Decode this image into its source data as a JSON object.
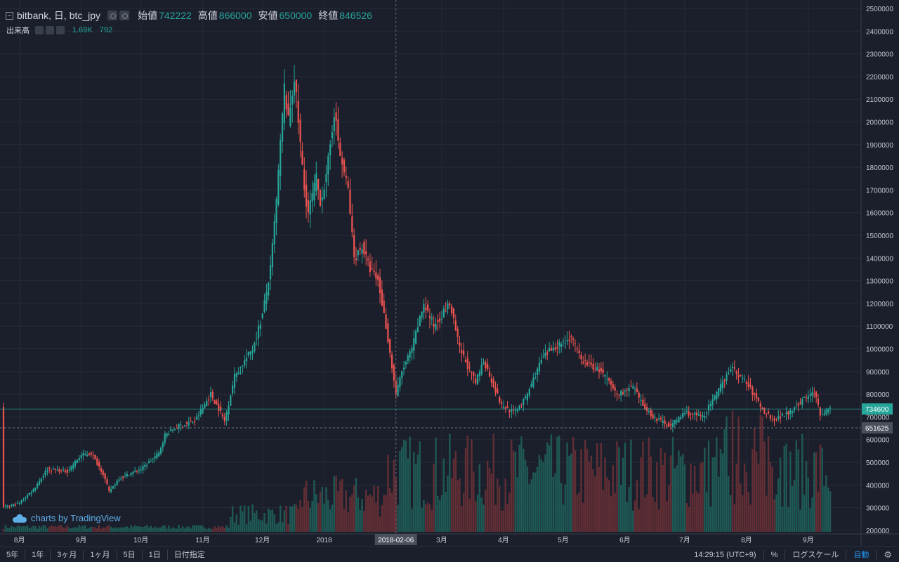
{
  "legend": {
    "symbol": "bitbank, 日, btc_jpy",
    "open_label": "始値",
    "open": "742222",
    "high_label": "高値",
    "high": "866000",
    "low_label": "安値",
    "low": "650000",
    "close_label": "終値",
    "close": "846526"
  },
  "volume_legend": {
    "label": "出来高",
    "value1": "1.69K",
    "value2": "792"
  },
  "watermark": "charts by TradingView",
  "toolbar": {
    "ranges": [
      "5年",
      "1年",
      "3ヶ月",
      "1ヶ月",
      "5日",
      "1日",
      "日付指定"
    ],
    "time": "14:29:15 (UTC+9)",
    "percent": "%",
    "log": "ログスケール",
    "auto": "自動",
    "settings_icon": "gear-icon"
  },
  "colors": {
    "up": "#26a69a",
    "down": "#ef5350",
    "background": "#1b1f2b"
  },
  "chart_data": {
    "type": "candlestick",
    "price_axis_ticks": [
      "2500000",
      "2400000",
      "2300000",
      "2200000",
      "2100000",
      "2000000",
      "1900000",
      "1800000",
      "1700000",
      "1600000",
      "1500000",
      "1400000",
      "1300000",
      "1200000",
      "1100000",
      "1000000",
      "900000",
      "800000",
      "700000",
      "600000",
      "500000",
      "400000",
      "300000",
      "200000"
    ],
    "ylim": [
      170000,
      2520000
    ],
    "time_labels": [
      "8月",
      "9月",
      "10月",
      "11月",
      "12月",
      "2018",
      "2018-02-06",
      "3月",
      "4月",
      "5月",
      "6月",
      "7月",
      "8月",
      "9月"
    ],
    "crosshair_date": "2018-02-06",
    "current_price": "734600",
    "crosshair_price": "651625",
    "close_path": [
      [
        "2017-07-24",
        300000
      ],
      [
        "2017-08-01",
        320000
      ],
      [
        "2017-08-08",
        380000
      ],
      [
        "2017-08-15",
        470000
      ],
      [
        "2017-08-25",
        460000
      ],
      [
        "2017-09-01",
        530000
      ],
      [
        "2017-09-06",
        540000
      ],
      [
        "2017-09-12",
        450000
      ],
      [
        "2017-09-15",
        370000
      ],
      [
        "2017-09-20",
        430000
      ],
      [
        "2017-10-01",
        470000
      ],
      [
        "2017-10-10",
        540000
      ],
      [
        "2017-10-13",
        620000
      ],
      [
        "2017-10-20",
        660000
      ],
      [
        "2017-10-28",
        680000
      ],
      [
        "2017-11-05",
        800000
      ],
      [
        "2017-11-10",
        720000
      ],
      [
        "2017-11-12",
        680000
      ],
      [
        "2017-11-17",
        880000
      ],
      [
        "2017-11-26",
        1000000
      ],
      [
        "2017-12-01",
        1150000
      ],
      [
        "2017-12-05",
        1350000
      ],
      [
        "2017-12-08",
        1650000
      ],
      [
        "2017-12-10",
        1900000
      ],
      [
        "2017-12-12",
        2150000
      ],
      [
        "2017-12-14",
        2000000
      ],
      [
        "2017-12-17",
        2200000
      ],
      [
        "2017-12-22",
        1700000
      ],
      [
        "2017-12-24",
        1600000
      ],
      [
        "2017-12-28",
        1750000
      ],
      [
        "2017-12-30",
        1650000
      ],
      [
        "2018-01-02",
        1750000
      ],
      [
        "2018-01-06",
        2050000
      ],
      [
        "2018-01-09",
        1850000
      ],
      [
        "2018-01-13",
        1700000
      ],
      [
        "2018-01-16",
        1400000
      ],
      [
        "2018-01-20",
        1450000
      ],
      [
        "2018-01-24",
        1350000
      ],
      [
        "2018-01-28",
        1300000
      ],
      [
        "2018-02-01",
        1100000
      ],
      [
        "2018-02-06",
        800000
      ],
      [
        "2018-02-09",
        900000
      ],
      [
        "2018-02-14",
        1000000
      ],
      [
        "2018-02-20",
        1200000
      ],
      [
        "2018-02-25",
        1100000
      ],
      [
        "2018-03-05",
        1200000
      ],
      [
        "2018-03-10",
        1000000
      ],
      [
        "2018-03-18",
        850000
      ],
      [
        "2018-03-22",
        950000
      ],
      [
        "2018-03-31",
        750000
      ],
      [
        "2018-04-06",
        720000
      ],
      [
        "2018-04-12",
        780000
      ],
      [
        "2018-04-20",
        950000
      ],
      [
        "2018-04-25",
        1000000
      ],
      [
        "2018-05-05",
        1050000
      ],
      [
        "2018-05-10",
        950000
      ],
      [
        "2018-05-20",
        900000
      ],
      [
        "2018-05-28",
        800000
      ],
      [
        "2018-06-05",
        830000
      ],
      [
        "2018-06-10",
        750000
      ],
      [
        "2018-06-15",
        700000
      ],
      [
        "2018-06-24",
        660000
      ],
      [
        "2018-07-01",
        720000
      ],
      [
        "2018-07-10",
        700000
      ],
      [
        "2018-07-17",
        800000
      ],
      [
        "2018-07-24",
        920000
      ],
      [
        "2018-08-01",
        850000
      ],
      [
        "2018-08-10",
        720000
      ],
      [
        "2018-08-15",
        690000
      ],
      [
        "2018-08-22",
        720000
      ],
      [
        "2018-08-30",
        780000
      ],
      [
        "2018-09-04",
        810000
      ],
      [
        "2018-09-07",
        710000
      ],
      [
        "2018-09-12",
        734600
      ]
    ]
  }
}
